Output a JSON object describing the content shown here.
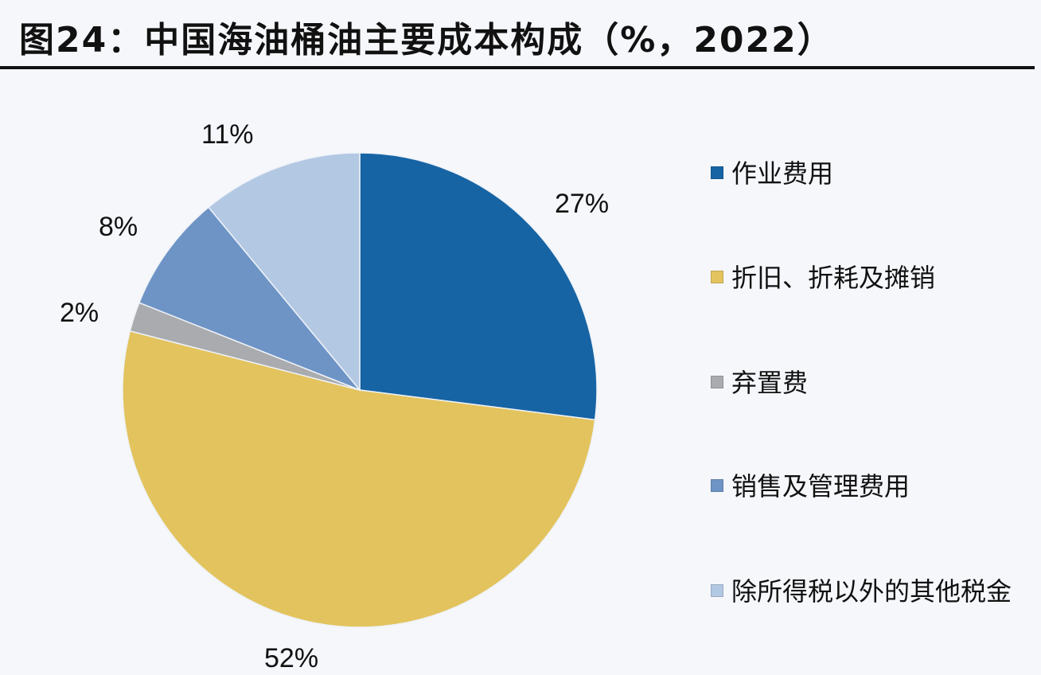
{
  "title": "图24：中国海油桶油主要成本构成（%，2022）",
  "chart_data": {
    "type": "pie",
    "title": "图24：中国海油桶油主要成本构成（%，2022）",
    "start_angle": "12 o'clock, clockwise",
    "categories": [
      "作业费用",
      "折旧、折耗及摊销",
      "弃置费",
      "销售及管理费用",
      "除所得税以外的其他税金"
    ],
    "values": [
      27,
      52,
      2,
      8,
      11
    ],
    "unit": "%",
    "colors": [
      "#1764a4",
      "#e3c35d",
      "#a9abae",
      "#6e94c6",
      "#b3c8e3"
    ],
    "data_labels": [
      "27%",
      "52%",
      "2%",
      "8%",
      "11%"
    ],
    "legend_position": "right"
  },
  "labels": {
    "s0": "27%",
    "s1": "52%",
    "s2": "2%",
    "s3": "8%",
    "s4": "11%"
  },
  "legend": [
    {
      "label": "作业费用",
      "color": "#1764a4"
    },
    {
      "label": "折旧、折耗及摊销",
      "color": "#e3c35d"
    },
    {
      "label": "弃置费",
      "color": "#a9abae"
    },
    {
      "label": "销售及管理费用",
      "color": "#6e94c6"
    },
    {
      "label": "除所得税以外的其他税金",
      "color": "#b3c8e3"
    }
  ]
}
